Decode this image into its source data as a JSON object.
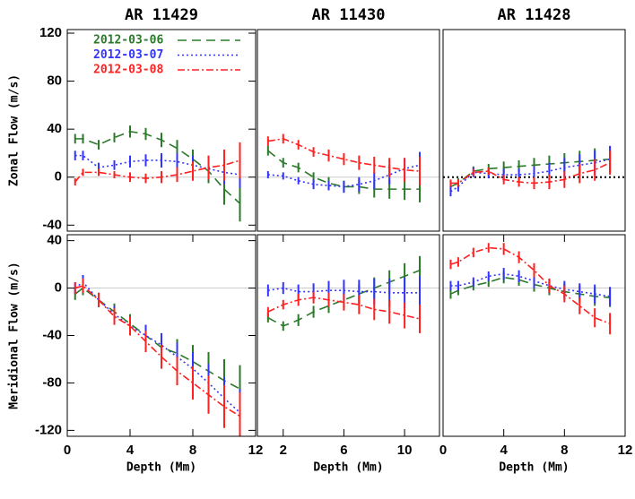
{
  "chart_data": [
    {
      "type": "line",
      "title": "AR 11429",
      "ylabel": "Zonal Flow (m/s)",
      "legend": "upper left",
      "x": [
        0.5,
        1,
        2,
        3,
        4,
        5,
        6,
        7,
        8,
        9,
        10,
        11
      ],
      "xlim": [
        0,
        12
      ],
      "ylim": [
        -45,
        123
      ],
      "yticks": [
        -40,
        0,
        40,
        80,
        120
      ],
      "hline": {
        "value": 0,
        "color": "#cccccc"
      },
      "series": [
        {
          "name": "2012-03-06",
          "color": "#2a7a2a",
          "dash": "10,6",
          "values": [
            32,
            32,
            27,
            33,
            38,
            36,
            31,
            24,
            15,
            5,
            -10,
            -22
          ],
          "errors": [
            4,
            4,
            4,
            4,
            5,
            5,
            6,
            7,
            8,
            10,
            13,
            15
          ]
        },
        {
          "name": "2012-03-07",
          "color": "#3333ff",
          "dash": "2,3",
          "values": [
            18,
            18,
            8,
            10,
            13,
            14,
            14,
            13,
            10,
            7,
            4,
            2
          ],
          "errors": [
            4,
            4,
            4,
            4,
            5,
            5,
            6,
            7,
            8,
            9,
            10,
            11
          ]
        },
        {
          "name": "2012-03-08",
          "color": "#ff2020",
          "dash": "8,3,2,3",
          "values": [
            -4,
            4,
            4,
            2,
            0,
            -1,
            0,
            2,
            5,
            8,
            10,
            14
          ],
          "errors": [
            3,
            3,
            3,
            3,
            4,
            4,
            5,
            6,
            8,
            10,
            13,
            15
          ]
        }
      ]
    },
    {
      "type": "line",
      "title": "AR 11430",
      "x": [
        1,
        2,
        3,
        4,
        5,
        6,
        7,
        8,
        9,
        10,
        11
      ],
      "xlim": [
        0.3,
        12.3
      ],
      "ylim": [
        -45,
        123
      ],
      "hline": {
        "value": 0,
        "color": "#cccccc"
      },
      "series": [
        {
          "color": "#2a7a2a",
          "dash": "10,6",
          "values": [
            22,
            12,
            8,
            0,
            -5,
            -8,
            -8,
            -10,
            -10,
            -10,
            -10
          ],
          "errors": [
            4,
            4,
            4,
            4,
            5,
            5,
            6,
            7,
            8,
            9,
            11
          ]
        },
        {
          "color": "#3333ff",
          "dash": "2,3",
          "values": [
            2,
            1,
            -3,
            -6,
            -7,
            -8,
            -6,
            -3,
            2,
            7,
            10
          ],
          "errors": [
            3,
            3,
            3,
            4,
            4,
            5,
            6,
            7,
            8,
            9,
            11
          ]
        },
        {
          "color": "#ff2020",
          "dash": "8,3,2,3",
          "values": [
            30,
            32,
            27,
            21,
            18,
            15,
            12,
            10,
            8,
            6,
            5
          ],
          "errors": [
            4,
            4,
            4,
            4,
            5,
            5,
            6,
            7,
            8,
            10,
            12
          ]
        }
      ]
    },
    {
      "type": "line",
      "title": "AR 11428",
      "x": [
        0.5,
        1,
        2,
        3,
        4,
        5,
        6,
        7,
        8,
        9,
        10,
        11
      ],
      "xlim": [
        0,
        12
      ],
      "ylim": [
        -45,
        123
      ],
      "hline": {
        "value": 0,
        "color": "#000000",
        "dash": "2,3"
      },
      "series": [
        {
          "color": "#2a7a2a",
          "dash": "10,6",
          "values": [
            -8,
            -5,
            5,
            7,
            8,
            9,
            10,
            11,
            12,
            13,
            14,
            15
          ],
          "errors": [
            4,
            4,
            4,
            4,
            5,
            5,
            6,
            7,
            8,
            9,
            10,
            11
          ]
        },
        {
          "color": "#3333ff",
          "dash": "2,3",
          "values": [
            -12,
            -8,
            4,
            3,
            2,
            2,
            3,
            5,
            8,
            10,
            12,
            15
          ],
          "errors": [
            4,
            4,
            4,
            4,
            5,
            5,
            6,
            7,
            8,
            9,
            10,
            11
          ]
        },
        {
          "color": "#ff2020",
          "dash": "8,3,2,3",
          "values": [
            -5,
            -5,
            4,
            5,
            -2,
            -4,
            -5,
            -4,
            -2,
            3,
            6,
            12
          ],
          "errors": [
            3,
            3,
            3,
            3,
            4,
            4,
            5,
            6,
            7,
            8,
            9,
            10
          ]
        }
      ]
    },
    {
      "type": "line",
      "ylabel": "Meridional Flow (m/s)",
      "xlabel": "Depth (Mm)",
      "x": [
        0.5,
        1,
        2,
        3,
        4,
        5,
        6,
        7,
        8,
        9,
        10,
        11
      ],
      "xlim": [
        0,
        12
      ],
      "xticks": [
        0,
        4,
        8,
        12
      ],
      "ylim": [
        -125,
        45
      ],
      "yticks": [
        -120,
        -80,
        -40,
        0,
        40
      ],
      "hline": {
        "value": 0,
        "color": "#cccccc"
      },
      "series": [
        {
          "color": "#2a7a2a",
          "dash": "10,6",
          "values": [
            -5,
            0,
            -10,
            -20,
            -30,
            -40,
            -50,
            -55,
            -62,
            -70,
            -78,
            -85
          ],
          "errors": [
            5,
            6,
            6,
            7,
            8,
            9,
            10,
            12,
            14,
            16,
            18,
            20
          ]
        },
        {
          "color": "#3333ff",
          "dash": "2,3",
          "values": [
            0,
            5,
            -10,
            -22,
            -32,
            -40,
            -48,
            -58,
            -68,
            -80,
            -93,
            -105
          ],
          "errors": [
            5,
            6,
            6,
            7,
            8,
            9,
            10,
            12,
            14,
            16,
            18,
            20
          ]
        },
        {
          "color": "#ff2020",
          "dash": "8,3,2,3",
          "values": [
            0,
            2,
            -10,
            -24,
            -32,
            -45,
            -58,
            -70,
            -80,
            -90,
            -100,
            -108
          ],
          "errors": [
            5,
            6,
            6,
            7,
            8,
            9,
            10,
            12,
            14,
            16,
            18,
            20
          ]
        }
      ]
    },
    {
      "type": "line",
      "xlabel": "Depth (Mm)",
      "x": [
        1,
        2,
        3,
        4,
        5,
        6,
        7,
        8,
        9,
        10,
        11
      ],
      "xlim": [
        0.3,
        12.3
      ],
      "xticks": [
        2,
        6,
        10
      ],
      "ylim": [
        -125,
        45
      ],
      "hline": {
        "value": 0,
        "color": "#cccccc"
      },
      "series": [
        {
          "color": "#2a7a2a",
          "dash": "10,6",
          "values": [
            -25,
            -32,
            -27,
            -20,
            -15,
            -10,
            -5,
            0,
            5,
            10,
            15
          ],
          "errors": [
            4,
            4,
            5,
            5,
            6,
            7,
            8,
            9,
            10,
            11,
            12
          ]
        },
        {
          "color": "#3333ff",
          "dash": "2,3",
          "values": [
            -2,
            0,
            -3,
            -3,
            -2,
            -2,
            -3,
            -3,
            -4,
            -4,
            -4
          ],
          "errors": [
            5,
            5,
            6,
            7,
            8,
            9,
            10,
            11,
            12,
            13,
            14
          ]
        },
        {
          "color": "#ff2020",
          "dash": "8,3,2,3",
          "values": [
            -20,
            -14,
            -10,
            -8,
            -10,
            -12,
            -14,
            -18,
            -20,
            -23,
            -26
          ],
          "errors": [
            4,
            4,
            5,
            5,
            6,
            7,
            8,
            9,
            10,
            11,
            12
          ]
        }
      ]
    },
    {
      "type": "line",
      "xlabel": "Depth (Mm)",
      "x": [
        0.5,
        1,
        2,
        3,
        4,
        5,
        6,
        7,
        8,
        9,
        10,
        11
      ],
      "xlim": [
        0,
        12
      ],
      "xticks": [
        0,
        4,
        8,
        12
      ],
      "ylim": [
        -125,
        45
      ],
      "hline": {
        "value": 0,
        "color": "#cccccc"
      },
      "series": [
        {
          "color": "#2a7a2a",
          "dash": "10,6",
          "values": [
            -5,
            -2,
            2,
            5,
            9,
            7,
            3,
            0,
            -3,
            -5,
            -7,
            -8
          ],
          "errors": [
            4,
            4,
            4,
            4,
            5,
            5,
            6,
            6,
            7,
            7,
            8,
            8
          ]
        },
        {
          "color": "#3333ff",
          "dash": "2,3",
          "values": [
            2,
            2,
            5,
            10,
            12,
            10,
            6,
            2,
            -1,
            -3,
            -5,
            -7
          ],
          "errors": [
            4,
            4,
            4,
            4,
            5,
            5,
            6,
            6,
            7,
            7,
            8,
            8
          ]
        },
        {
          "color": "#ff2020",
          "dash": "8,3,2,3",
          "values": [
            20,
            22,
            30,
            34,
            33,
            26,
            15,
            2,
            -5,
            -15,
            -25,
            -30
          ],
          "errors": [
            4,
            4,
            4,
            4,
            5,
            5,
            6,
            6,
            7,
            7,
            8,
            9
          ]
        }
      ]
    }
  ]
}
